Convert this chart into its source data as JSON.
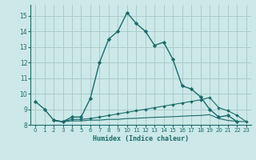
{
  "xlabel": "Humidex (Indice chaleur)",
  "bg_color": "#cce8e8",
  "grid_color": "#aacccc",
  "line_color": "#1a6b6b",
  "xlim": [
    -0.5,
    23.5
  ],
  "ylim": [
    8.0,
    15.7
  ],
  "yticks": [
    8,
    9,
    10,
    11,
    12,
    13,
    14,
    15
  ],
  "xticks": [
    0,
    1,
    2,
    3,
    4,
    5,
    6,
    7,
    8,
    9,
    10,
    11,
    12,
    13,
    14,
    15,
    16,
    17,
    18,
    19,
    20,
    21,
    22,
    23
  ],
  "series1_x": [
    0,
    1,
    2,
    3,
    4,
    5,
    6,
    7,
    8,
    9,
    10,
    11,
    12,
    13,
    14,
    15,
    16,
    17,
    18,
    19,
    20,
    21,
    22
  ],
  "series1_y": [
    9.5,
    9.0,
    8.3,
    8.2,
    8.5,
    8.5,
    9.7,
    12.0,
    13.5,
    14.0,
    15.2,
    14.5,
    14.0,
    13.1,
    13.3,
    12.2,
    10.5,
    10.3,
    9.8,
    9.0,
    8.5,
    8.6,
    8.2
  ],
  "series2_x": [
    2,
    3,
    4,
    5,
    6,
    7,
    8,
    9,
    10,
    11,
    12,
    13,
    14,
    15,
    16,
    17,
    18,
    19,
    20,
    21,
    22,
    23
  ],
  "series2_y": [
    8.3,
    8.2,
    8.35,
    8.35,
    8.4,
    8.5,
    8.6,
    8.7,
    8.8,
    8.9,
    9.0,
    9.1,
    9.2,
    9.3,
    9.4,
    9.5,
    9.6,
    9.75,
    9.1,
    8.9,
    8.6,
    8.2
  ],
  "series3_x": [
    2,
    3,
    4,
    5,
    6,
    7,
    8,
    9,
    10,
    11,
    12,
    13,
    14,
    15,
    16,
    17,
    18,
    19,
    20,
    21,
    22,
    23
  ],
  "series3_y": [
    8.25,
    8.2,
    8.25,
    8.25,
    8.3,
    8.3,
    8.35,
    8.35,
    8.4,
    8.42,
    8.45,
    8.48,
    8.5,
    8.52,
    8.55,
    8.58,
    8.6,
    8.65,
    8.4,
    8.28,
    8.22,
    8.2
  ]
}
